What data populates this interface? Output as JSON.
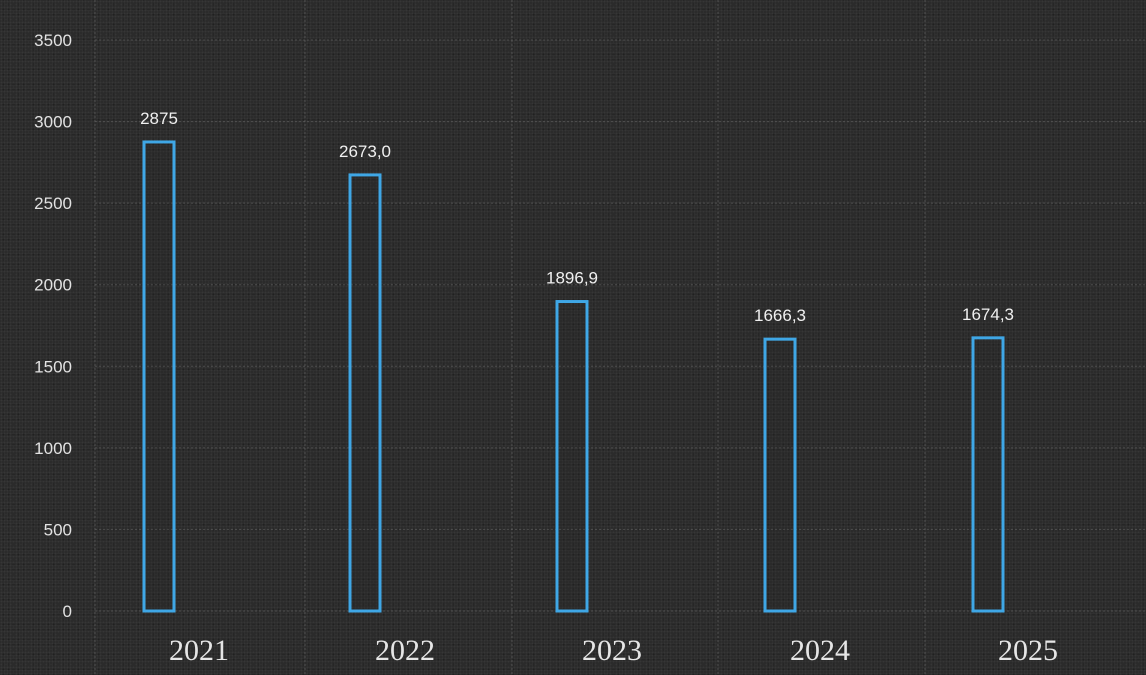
{
  "chart_data": {
    "type": "bar",
    "title": "",
    "xlabel": "",
    "ylabel": "",
    "categories": [
      "2021",
      "2022",
      "2023",
      "2024",
      "2025"
    ],
    "values": [
      2875,
      2673.0,
      1896.9,
      1666.3,
      1674.3
    ],
    "data_labels": [
      "2875",
      "2673,0",
      "1896,9",
      "1666,3",
      "1674,3"
    ],
    "y_ticks": [
      0,
      500,
      1000,
      1500,
      2000,
      2500,
      3000,
      3500
    ],
    "ylim": [
      0,
      3500
    ],
    "grid": true,
    "legend": "none",
    "bar_color": "#3fa7e6",
    "background_color": "#2b2b2b"
  }
}
